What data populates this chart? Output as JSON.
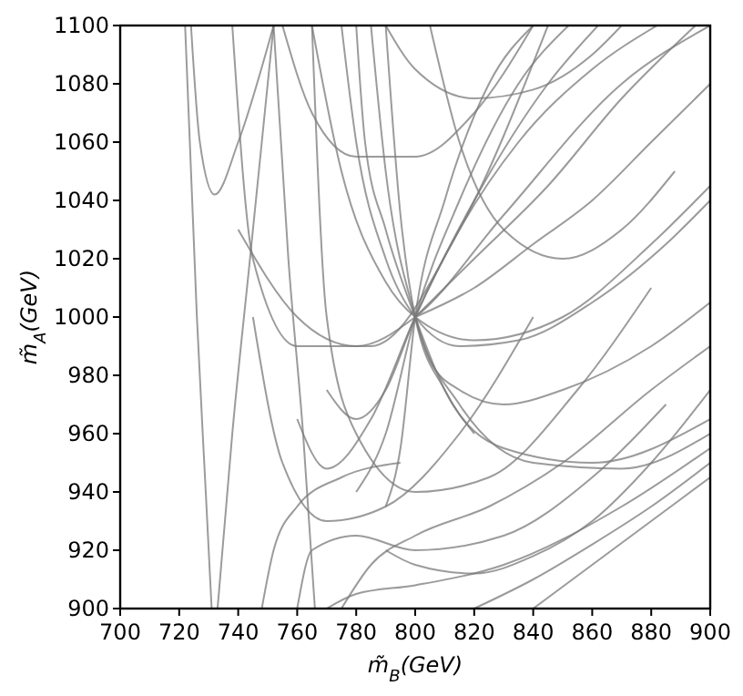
{
  "chart_data": {
    "type": "line",
    "xlabel": "m̃$_{B}$(GeV)",
    "ylabel": "m̃$_{A}$(GeV)",
    "xlim": [
      700,
      900
    ],
    "ylim": [
      900,
      1100
    ],
    "xticks": [
      700,
      720,
      740,
      760,
      780,
      800,
      820,
      840,
      860,
      880,
      900
    ],
    "yticks": [
      900,
      920,
      940,
      960,
      980,
      1000,
      1020,
      1040,
      1060,
      1080,
      1100
    ],
    "grid": false,
    "line_style": "solid",
    "series": [
      {
        "color": "#7a7a7a",
        "x": [
          775,
          780,
          790,
          800,
          815,
          835,
          860,
          885,
          900
        ],
        "values": [
          1100,
          1060,
          1020,
          1000,
          990,
          992,
          1005,
          1025,
          1040
        ]
      },
      {
        "color": "#7a7a7a",
        "x": [
          765,
          775,
          790,
          800,
          820,
          850,
          880,
          900
        ],
        "values": [
          1100,
          1050,
          1012,
          1000,
          992,
          1000,
          1025,
          1045
        ]
      },
      {
        "color": "#7a7a7a",
        "x": [
          790,
          795,
          800,
          810,
          830,
          860,
          900
        ],
        "values": [
          1100,
          1035,
          1000,
          975,
          955,
          950,
          965
        ]
      },
      {
        "color": "#7a7a7a",
        "x": [
          785,
          790,
          800,
          815,
          840,
          870,
          900
        ],
        "values": [
          1100,
          1050,
          1000,
          970,
          950,
          948,
          960
        ]
      },
      {
        "color": "#7a7a7a",
        "x": [
          760,
          770,
          785,
          800,
          820,
          845,
          862
        ],
        "values": [
          965,
          948,
          965,
          1000,
          1040,
          1080,
          1100
        ]
      },
      {
        "color": "#7a7a7a",
        "x": [
          780,
          790,
          800,
          815,
          835,
          852
        ],
        "values": [
          940,
          960,
          1000,
          1040,
          1080,
          1100
        ]
      },
      {
        "color": "#7a7a7a",
        "x": [
          790,
          795,
          800,
          810,
          825,
          840
        ],
        "values": [
          935,
          955,
          1000,
          1040,
          1080,
          1100
        ]
      },
      {
        "color": "#7a7a7a",
        "x": [
          770,
          780,
          790,
          800,
          815,
          835,
          860,
          882
        ],
        "values": [
          975,
          965,
          975,
          1000,
          1030,
          1060,
          1085,
          1100
        ]
      },
      {
        "color": "#7a7a7a",
        "x": [
          740,
          760,
          780,
          800,
          830,
          870,
          900
        ],
        "values": [
          1030,
          1000,
          990,
          1000,
          1035,
          1080,
          1100
        ]
      },
      {
        "color": "#7a7a7a",
        "x": [
          800,
          805,
          815,
          830,
          850,
          880,
          900
        ],
        "values": [
          1000,
          985,
          975,
          970,
          975,
          990,
          1005
        ]
      },
      {
        "color": "#7a7a7a",
        "x": [
          724,
          727,
          732,
          740,
          752
        ],
        "values": [
          1100,
          1060,
          1042,
          1060,
          1100
        ]
      },
      {
        "color": "#7a7a7a",
        "x": [
          722,
          726,
          729,
          731
        ],
        "values": [
          1100,
          1000,
          940,
          900
        ]
      },
      {
        "color": "#7a7a7a",
        "x": [
          738,
          745,
          760,
          785,
          815,
          845
        ],
        "values": [
          1100,
          1020,
          990,
          990,
          1030,
          1100
        ]
      },
      {
        "color": "#7a7a7a",
        "x": [
          745,
          755,
          770,
          790,
          815,
          840
        ],
        "values": [
          1000,
          950,
          930,
          935,
          960,
          1000
        ]
      },
      {
        "color": "#7a7a7a",
        "x": [
          760,
          765,
          780,
          800,
          830,
          860,
          885
        ],
        "values": [
          900,
          920,
          925,
          920,
          925,
          945,
          970
        ]
      },
      {
        "color": "#7a7a7a",
        "x": [
          775,
          785,
          800,
          825,
          850,
          880,
          900
        ],
        "values": [
          900,
          915,
          925,
          935,
          950,
          975,
          990
        ]
      },
      {
        "color": "#7a7a7a",
        "x": [
          765,
          770,
          780,
          800,
          825,
          855,
          880
        ],
        "values": [
          1100,
          1000,
          960,
          940,
          945,
          975,
          1010
        ]
      },
      {
        "color": "#7a7a7a",
        "x": [
          770,
          780,
          800,
          830,
          870,
          900
        ],
        "values": [
          900,
          905,
          908,
          915,
          935,
          955
        ]
      },
      {
        "color": "#7a7a7a",
        "x": [
          820,
          840,
          860,
          880,
          900
        ],
        "values": [
          900,
          910,
          922,
          935,
          950
        ]
      },
      {
        "color": "#7a7a7a",
        "x": [
          840,
          860,
          880,
          900
        ],
        "values": [
          900,
          915,
          930,
          945
        ]
      },
      {
        "color": "#7a7a7a",
        "x": [
          790,
          800,
          820,
          840,
          860,
          880,
          900
        ],
        "values": [
          920,
          915,
          912,
          918,
          930,
          950,
          975
        ]
      },
      {
        "color": "#7a7a7a",
        "x": [
          800,
          820,
          845,
          870,
          895
        ],
        "values": [
          1000,
          1020,
          1045,
          1075,
          1100
        ]
      },
      {
        "color": "#7a7a7a",
        "x": [
          800,
          820,
          840,
          860,
          880,
          900
        ],
        "values": [
          1000,
          1010,
          1025,
          1040,
          1060,
          1080
        ]
      },
      {
        "color": "#7a7a7a",
        "x": [
          805,
          815,
          830,
          850,
          870,
          888
        ],
        "values": [
          1100,
          1060,
          1030,
          1020,
          1030,
          1050
        ]
      },
      {
        "color": "#7a7a7a",
        "x": [
          790,
          800,
          820,
          840,
          860,
          870
        ],
        "values": [
          1100,
          1085,
          1075,
          1078,
          1090,
          1100
        ]
      },
      {
        "color": "#7a7a7a",
        "x": [
          755,
          765,
          780,
          800,
          820,
          840
        ],
        "values": [
          1100,
          1070,
          1055,
          1055,
          1070,
          1100
        ]
      },
      {
        "color": "#7a7a7a",
        "x": [
          748,
          752,
          760,
          775,
          795
        ],
        "values": [
          900,
          920,
          935,
          945,
          950
        ]
      },
      {
        "color": "#7a7a7a",
        "x": [
          752,
          757,
          762,
          766
        ],
        "values": [
          1100,
          1020,
          960,
          900
        ]
      },
      {
        "color": "#7a7a7a",
        "x": [
          780,
          783,
          790,
          800,
          810,
          820
        ],
        "values": [
          1100,
          1060,
          1030,
          1000,
          975,
          960
        ]
      },
      {
        "color": "#7a7a7a",
        "x": [
          733,
          738,
          744,
          752
        ],
        "values": [
          900,
          960,
          1020,
          1100
        ]
      }
    ]
  }
}
